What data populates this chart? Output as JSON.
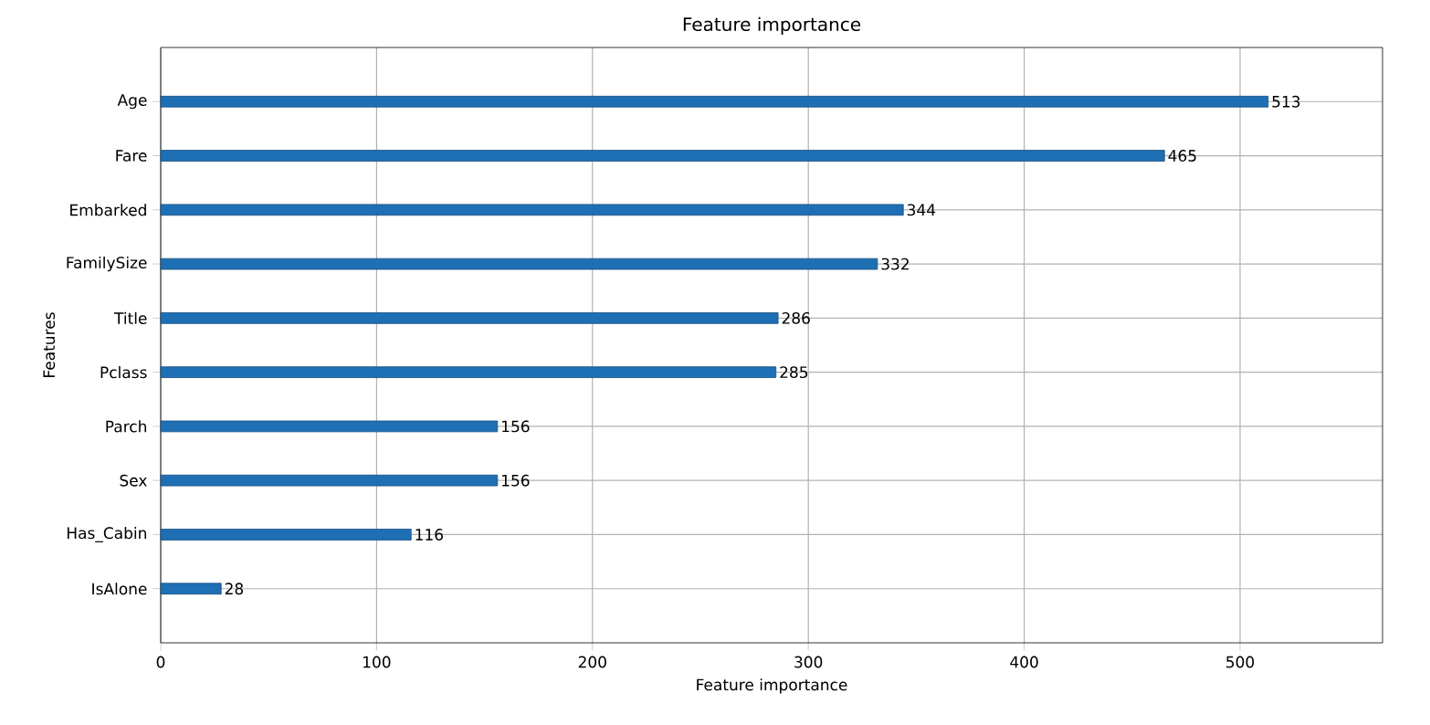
{
  "chart_data": {
    "type": "bar",
    "orientation": "horizontal",
    "title": "Feature importance",
    "xlabel": "Feature importance",
    "ylabel": "Features",
    "categories": [
      "Age",
      "Fare",
      "Embarked",
      "FamilySize",
      "Title",
      "Pclass",
      "Parch",
      "Sex",
      "Has_Cabin",
      "IsAlone"
    ],
    "values": [
      513,
      465,
      344,
      332,
      286,
      285,
      156,
      156,
      116,
      28
    ],
    "color": "#1f6fb4",
    "xlim": [
      0,
      566
    ],
    "xticks": [
      0,
      100,
      200,
      300,
      400,
      500
    ],
    "grid": true,
    "data_labels": true
  }
}
